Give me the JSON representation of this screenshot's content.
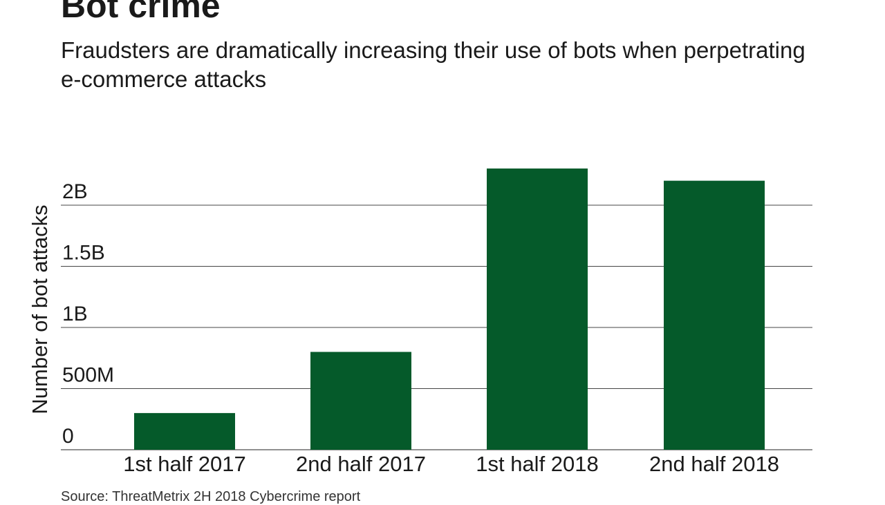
{
  "chart_data": {
    "type": "bar",
    "title": "Bot crime",
    "subtitle": "Fraudsters are dramatically increasing their use of bots when perpetrating e-commerce attacks",
    "ylabel": "Number of bot attacks",
    "xlabel": "",
    "categories": [
      "1st half 2017",
      "2nd half 2017",
      "1st half 2018",
      "2nd half 2018"
    ],
    "values": [
      300000000,
      800000000,
      2300000000,
      2200000000
    ],
    "ylim": [
      0,
      2300000000
    ],
    "yticks": [
      0,
      500000000,
      1000000000,
      1500000000,
      2000000000
    ],
    "ytick_labels": [
      "0",
      "500M",
      "1B",
      "1.5B",
      "2B"
    ],
    "grid": true,
    "bar_color": "#055a2a",
    "source": "Source: ThreatMetrix 2H 2018 Cybercrime report"
  }
}
